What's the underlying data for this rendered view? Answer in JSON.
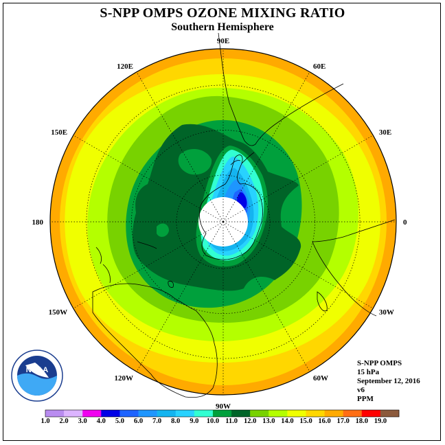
{
  "title": "S-NPP OMPS OZONE MIXING RATIO",
  "subtitle": "Southern Hemisphere",
  "longitude_labels": [
    {
      "label": "90W",
      "lon": -90
    },
    {
      "label": "60W",
      "lon": -60
    },
    {
      "label": "30W",
      "lon": -30
    },
    {
      "label": "0",
      "lon": 0
    },
    {
      "label": "30E",
      "lon": 30
    },
    {
      "label": "60E",
      "lon": 60
    },
    {
      "label": "90E",
      "lon": 90
    },
    {
      "label": "120E",
      "lon": 120
    },
    {
      "label": "150E",
      "lon": 150
    },
    {
      "label": "180",
      "lon": 180
    },
    {
      "label": "150W",
      "lon": -150
    },
    {
      "label": "120W",
      "lon": -120
    }
  ],
  "info": {
    "instrument": "S-NPP OMPS",
    "level": "15 hPa",
    "date": "September 12, 2016",
    "version": "v6",
    "units": "PPM"
  },
  "logo_text": "NOAA",
  "colorbar": {
    "labels": [
      "1.0",
      "2.0",
      "3.0",
      "4.0",
      "5.0",
      "6.0",
      "7.0",
      "8.0",
      "9.0",
      "10.0",
      "11.0",
      "12.0",
      "13.0",
      "14.0",
      "15.0",
      "16.0",
      "17.0",
      "18.0",
      "19.0"
    ],
    "colors": [
      "#b98cf0",
      "#dcb4ff",
      "#f000f0",
      "#0000e6",
      "#1e64ff",
      "#1e96ff",
      "#14b4f0",
      "#28d2ff",
      "#32ffd2",
      "#00a03c",
      "#006428",
      "#78d200",
      "#b4ff00",
      "#f0ff00",
      "#ffd700",
      "#ffaa00",
      "#ff6e14",
      "#ff0000",
      "#8c5a3c"
    ]
  },
  "colors": {
    "band_11": "#006428",
    "band_12": "#00a03c",
    "band_13": "#78d200",
    "band_14": "#b4ff00",
    "band_15": "#f0ff00",
    "band_16": "#ffd700",
    "band_17": "#ffaa00"
  }
}
